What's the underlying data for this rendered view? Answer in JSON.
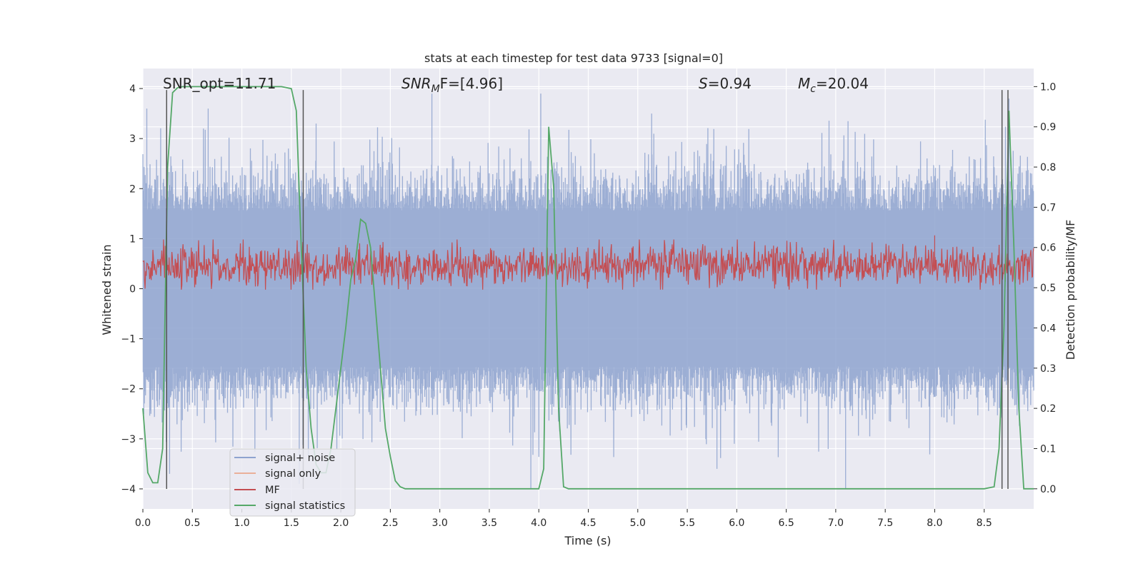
{
  "chart_data": {
    "type": "line",
    "title": "stats at each timestep for test data 9733 [signal=0]",
    "xlabel": "Time (s)",
    "ylabel": "Whitened strain",
    "y2label": "Detection probability/MF",
    "xlim": [
      0.0,
      9.0
    ],
    "ylim": [
      -4.4,
      4.4
    ],
    "y2lim": [
      -0.05,
      1.045
    ],
    "x_ticks": [
      0.0,
      0.5,
      1.0,
      1.5,
      2.0,
      2.5,
      3.0,
      3.5,
      4.0,
      4.5,
      5.0,
      5.5,
      6.0,
      6.5,
      7.0,
      7.5,
      8.0,
      8.5
    ],
    "x_tick_labels": [
      "0.0",
      "0.5",
      "1.0",
      "1.5",
      "2.0",
      "2.5",
      "3.0",
      "3.5",
      "4.0",
      "4.5",
      "5.0",
      "5.5",
      "6.0",
      "6.5",
      "7.0",
      "7.5",
      "8.0",
      "8.5"
    ],
    "y_ticks": [
      -4,
      -3,
      -2,
      -1,
      0,
      1,
      2,
      3,
      4
    ],
    "y_tick_labels": [
      "−4",
      "−3",
      "−2",
      "−1",
      "0",
      "1",
      "2",
      "3",
      "4"
    ],
    "y2_ticks": [
      0.0,
      0.1,
      0.2,
      0.3,
      0.4,
      0.5,
      0.6,
      0.7,
      0.8,
      0.9,
      1.0
    ],
    "y2_tick_labels": [
      "0.0",
      "0.1",
      "0.2",
      "0.3",
      "0.4",
      "0.5",
      "0.6",
      "0.7",
      "0.8",
      "0.9",
      "1.0"
    ],
    "grid": true,
    "annotations": {
      "snr_opt": "SNR_opt=11.71",
      "snr_mf_main": "SNR",
      "snr_mf_sub": "M",
      "snr_mf_rest": "F=[4.96]",
      "s_var": "S",
      "s_rest": "=0.94",
      "mc_var": "M",
      "mc_sub": "c",
      "mc_rest": "=20.04"
    },
    "legend": {
      "location": "lower-left",
      "entries": [
        {
          "label": "signal+ noise",
          "color": "#8ea3cf"
        },
        {
          "label": "signal only",
          "color": "#eab099"
        },
        {
          "label": "MF",
          "color": "#c44e52"
        },
        {
          "label": "signal statistics",
          "color": "#55a868"
        }
      ]
    },
    "series": [
      {
        "name": "signal+ noise",
        "axis": "left",
        "color": "#8ea3cf",
        "description": "whitened noise, approx. uniform band from -1.6 to 1.6 with spikes up to about +/-4",
        "band": [
          -1.6,
          1.6
        ],
        "peaks": [
          {
            "x": 0.04,
            "y": 3.6
          },
          {
            "x": 0.66,
            "y": 3.6
          },
          {
            "x": 1.75,
            "y": 3.3
          },
          {
            "x": 2.92,
            "y": 3.9
          },
          {
            "x": 4.02,
            "y": 3.9
          },
          {
            "x": 5.14,
            "y": 3.5
          },
          {
            "x": 8.75,
            "y": 3.8
          },
          {
            "x": 0.27,
            "y": -3.7
          },
          {
            "x": 1.58,
            "y": -3.9
          },
          {
            "x": 3.92,
            "y": -4.0
          },
          {
            "x": 7.1,
            "y": -4.0
          },
          {
            "x": 5.8,
            "y": -3.6
          }
        ]
      },
      {
        "name": "MF",
        "axis": "right",
        "color": "#c44e52",
        "description": "matched-filter output fluctuating between about 0.50 and 0.61",
        "band": [
          0.5,
          0.61
        ],
        "peaks": [
          {
            "x": 8.0,
            "y": 0.63
          }
        ]
      },
      {
        "name": "signal statistics",
        "axis": "right",
        "color": "#55a868",
        "x": [
          0.0,
          0.05,
          0.1,
          0.15,
          0.2,
          0.25,
          0.3,
          0.35,
          0.4,
          0.5,
          0.6,
          0.8,
          1.0,
          1.2,
          1.4,
          1.5,
          1.55,
          1.6,
          1.65,
          1.7,
          1.75,
          1.8,
          1.85,
          1.9,
          1.95,
          2.0,
          2.05,
          2.1,
          2.15,
          2.2,
          2.25,
          2.3,
          2.35,
          2.4,
          2.45,
          2.5,
          2.55,
          2.6,
          2.65,
          2.7,
          2.8,
          3.0,
          3.5,
          3.9,
          4.0,
          4.05,
          4.1,
          4.15,
          4.2,
          4.25,
          4.3,
          4.5,
          5.0,
          6.0,
          7.0,
          8.0,
          8.5,
          8.6,
          8.65,
          8.7,
          8.75,
          8.8,
          8.85,
          8.9,
          8.95,
          9.0
        ],
        "values": [
          0.2,
          0.04,
          0.015,
          0.015,
          0.1,
          0.8,
          0.985,
          0.997,
          1.0,
          1.0,
          1.0,
          1.0,
          1.0,
          1.0,
          1.0,
          0.995,
          0.94,
          0.6,
          0.3,
          0.15,
          0.06,
          0.04,
          0.04,
          0.1,
          0.2,
          0.3,
          0.4,
          0.52,
          0.57,
          0.67,
          0.66,
          0.6,
          0.45,
          0.3,
          0.15,
          0.08,
          0.02,
          0.005,
          0.0,
          0.0,
          0.0,
          0.0,
          0.0,
          0.0,
          0.0,
          0.05,
          0.9,
          0.75,
          0.2,
          0.005,
          0.0,
          0.0,
          0.0,
          0.0,
          0.0,
          0.0,
          0.0,
          0.005,
          0.1,
          0.4,
          0.94,
          0.6,
          0.2,
          0.0,
          0.0,
          0.0
        ]
      }
    ],
    "vertical_markers": {
      "color": "#555555",
      "x": [
        0.24,
        1.62,
        8.68,
        8.74
      ],
      "y_range": [
        -4.0,
        3.97
      ]
    }
  }
}
